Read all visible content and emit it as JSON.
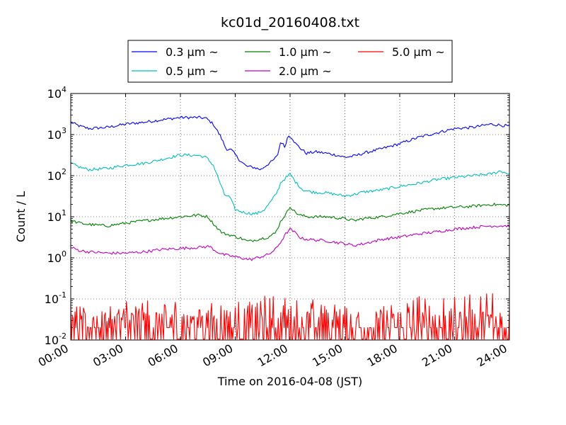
{
  "chart_data": {
    "type": "line",
    "title": "kc01d_20160408.txt",
    "xlabel": "Time on 2016-04-08 (JST)",
    "ylabel": "Count / L",
    "y_scale": "log",
    "ylim": [
      0.01,
      10000
    ],
    "xlim": [
      "00:00",
      "24:00"
    ],
    "grid": true,
    "legend_position": "top-center",
    "x_ticks": [
      "00:00",
      "03:00",
      "06:00",
      "09:00",
      "12:00",
      "15:00",
      "18:00",
      "21:00",
      "24:00"
    ],
    "y_ticks": [
      {
        "base": "10",
        "exp": "-2"
      },
      {
        "base": "10",
        "exp": "-1"
      },
      {
        "base": "10",
        "exp": "0"
      },
      {
        "base": "10",
        "exp": "1"
      },
      {
        "base": "10",
        "exp": "2"
      },
      {
        "base": "10",
        "exp": "3"
      },
      {
        "base": "10",
        "exp": "4"
      }
    ],
    "series": [
      {
        "name": "0.3 μm ~",
        "color": "#0000ff",
        "points": [
          [
            0,
            2000
          ],
          [
            0.5,
            1600
          ],
          [
            1,
            1400
          ],
          [
            2,
            1500
          ],
          [
            3,
            1800
          ],
          [
            4,
            2000
          ],
          [
            5,
            2300
          ],
          [
            6,
            2600
          ],
          [
            7,
            2600
          ],
          [
            7.4,
            2500
          ],
          [
            7.8,
            1800
          ],
          [
            8.2,
            900
          ],
          [
            8.5,
            450
          ],
          [
            8.8,
            420
          ],
          [
            9.2,
            250
          ],
          [
            9.6,
            170
          ],
          [
            10,
            160
          ],
          [
            10.4,
            140
          ],
          [
            10.7,
            180
          ],
          [
            11,
            220
          ],
          [
            11.3,
            300
          ],
          [
            11.5,
            700
          ],
          [
            11.7,
            500
          ],
          [
            11.9,
            950
          ],
          [
            12.1,
            850
          ],
          [
            12.3,
            600
          ],
          [
            12.6,
            450
          ],
          [
            12.9,
            350
          ],
          [
            13.4,
            380
          ],
          [
            14,
            350
          ],
          [
            14.5,
            320
          ],
          [
            15,
            280
          ],
          [
            15.5,
            300
          ],
          [
            16,
            350
          ],
          [
            17,
            450
          ],
          [
            18,
            600
          ],
          [
            19,
            850
          ],
          [
            20,
            1100
          ],
          [
            21,
            1400
          ],
          [
            22,
            1500
          ],
          [
            23,
            1800
          ],
          [
            24,
            1600
          ]
        ]
      },
      {
        "name": "0.5 μm ~",
        "color": "#00bfbf",
        "points": [
          [
            0,
            200
          ],
          [
            0.5,
            160
          ],
          [
            1,
            140
          ],
          [
            2,
            150
          ],
          [
            3,
            180
          ],
          [
            4,
            200
          ],
          [
            5,
            250
          ],
          [
            6,
            320
          ],
          [
            7,
            310
          ],
          [
            7.4,
            280
          ],
          [
            7.8,
            180
          ],
          [
            8.1,
            80
          ],
          [
            8.4,
            35
          ],
          [
            8.7,
            30
          ],
          [
            9,
            15
          ],
          [
            9.4,
            13
          ],
          [
            9.8,
            12
          ],
          [
            10.2,
            12
          ],
          [
            10.6,
            15
          ],
          [
            11,
            25
          ],
          [
            11.3,
            40
          ],
          [
            11.5,
            70
          ],
          [
            11.8,
            90
          ],
          [
            12,
            110
          ],
          [
            12.3,
            70
          ],
          [
            12.7,
            45
          ],
          [
            13.2,
            40
          ],
          [
            14,
            38
          ],
          [
            14.5,
            35
          ],
          [
            15,
            32
          ],
          [
            15.5,
            35
          ],
          [
            16,
            40
          ],
          [
            17,
            45
          ],
          [
            18,
            55
          ],
          [
            19,
            65
          ],
          [
            20,
            80
          ],
          [
            21,
            90
          ],
          [
            22,
            100
          ],
          [
            23,
            110
          ],
          [
            23.5,
            130
          ],
          [
            24,
            110
          ]
        ]
      },
      {
        "name": "1.0 μm ~",
        "color": "#008000",
        "points": [
          [
            0,
            8
          ],
          [
            0.5,
            7
          ],
          [
            1,
            6.5
          ],
          [
            2,
            6
          ],
          [
            3,
            7
          ],
          [
            4,
            8
          ],
          [
            5,
            9
          ],
          [
            6,
            10
          ],
          [
            7,
            11
          ],
          [
            7.5,
            10
          ],
          [
            7.9,
            6
          ],
          [
            8.3,
            4
          ],
          [
            8.8,
            3.5
          ],
          [
            9.3,
            3
          ],
          [
            9.7,
            2.5
          ],
          [
            10.2,
            2.8
          ],
          [
            10.8,
            3.2
          ],
          [
            11.2,
            4
          ],
          [
            11.5,
            8
          ],
          [
            11.8,
            12
          ],
          [
            12,
            18
          ],
          [
            12.2,
            14
          ],
          [
            12.5,
            11
          ],
          [
            13,
            10
          ],
          [
            14,
            10
          ],
          [
            15,
            9
          ],
          [
            15.5,
            8
          ],
          [
            16,
            9
          ],
          [
            17,
            10
          ],
          [
            18,
            12
          ],
          [
            19,
            14
          ],
          [
            20,
            16
          ],
          [
            21,
            17
          ],
          [
            22,
            18
          ],
          [
            23,
            20
          ],
          [
            24,
            19
          ]
        ]
      },
      {
        "name": "2.0 μm ~",
        "color": "#bf00bf",
        "points": [
          [
            0,
            1.8
          ],
          [
            0.5,
            1.5
          ],
          [
            1,
            1.4
          ],
          [
            2,
            1.3
          ],
          [
            3,
            1.3
          ],
          [
            4,
            1.4
          ],
          [
            5,
            1.6
          ],
          [
            6,
            1.7
          ],
          [
            7,
            1.8
          ],
          [
            7.6,
            1.9
          ],
          [
            7.9,
            1.5
          ],
          [
            8.3,
            1.2
          ],
          [
            8.8,
            1.1
          ],
          [
            9.3,
            1.0
          ],
          [
            9.8,
            0.9
          ],
          [
            10.2,
            1.0
          ],
          [
            10.8,
            1.2
          ],
          [
            11.2,
            1.6
          ],
          [
            11.5,
            2.5
          ],
          [
            11.8,
            4
          ],
          [
            12,
            5
          ],
          [
            12.3,
            4
          ],
          [
            12.6,
            3
          ],
          [
            13,
            2.8
          ],
          [
            14,
            2.6
          ],
          [
            15,
            2.2
          ],
          [
            15.5,
            2.0
          ],
          [
            16,
            2.2
          ],
          [
            17,
            2.8
          ],
          [
            18,
            3.2
          ],
          [
            19,
            3.8
          ],
          [
            20,
            4.3
          ],
          [
            21,
            5
          ],
          [
            22,
            5.5
          ],
          [
            23,
            6
          ],
          [
            24,
            6
          ]
        ]
      },
      {
        "name": "5.0 μm ~",
        "color": "#ff0000",
        "points": [
          [
            0,
            0.03
          ],
          [
            0.5,
            0.03
          ],
          [
            1,
            0.02
          ],
          [
            1.5,
            0.05
          ],
          [
            2,
            0.03
          ],
          [
            2.5,
            0.04
          ],
          [
            3,
            0.04
          ],
          [
            3.5,
            0.03
          ],
          [
            4,
            0.05
          ],
          [
            4.5,
            0.04
          ],
          [
            5,
            0.03
          ],
          [
            5.5,
            0.04
          ],
          [
            6,
            0.04
          ],
          [
            6.5,
            0.03
          ],
          [
            7,
            0.04
          ],
          [
            7.5,
            0.04
          ],
          [
            8,
            0.03
          ],
          [
            8.5,
            0.04
          ],
          [
            9,
            0.04
          ],
          [
            9.5,
            0.03
          ],
          [
            10,
            0.04
          ],
          [
            10.5,
            0.05
          ],
          [
            11,
            0.05
          ],
          [
            11.5,
            0.05
          ],
          [
            12,
            0.05
          ],
          [
            12.5,
            0.04
          ],
          [
            13,
            0.05
          ],
          [
            13.5,
            0.04
          ],
          [
            14,
            0.04
          ],
          [
            14.5,
            0.04
          ],
          [
            15,
            0.03
          ],
          [
            15.5,
            0.03
          ],
          [
            16,
            0.03
          ],
          [
            16.5,
            0.04
          ],
          [
            17,
            0.03
          ],
          [
            17.5,
            0.03
          ],
          [
            18,
            0.04
          ],
          [
            18.5,
            0.04
          ],
          [
            19,
            0.05
          ],
          [
            19.5,
            0.05
          ],
          [
            20,
            0.06
          ],
          [
            20.5,
            0.05
          ],
          [
            21,
            0.05
          ],
          [
            21.5,
            0.06
          ],
          [
            22,
            0.05
          ],
          [
            22.5,
            0.06
          ],
          [
            23,
            0.06
          ],
          [
            23.5,
            0.07
          ],
          [
            24,
            0.06
          ]
        ]
      }
    ]
  }
}
